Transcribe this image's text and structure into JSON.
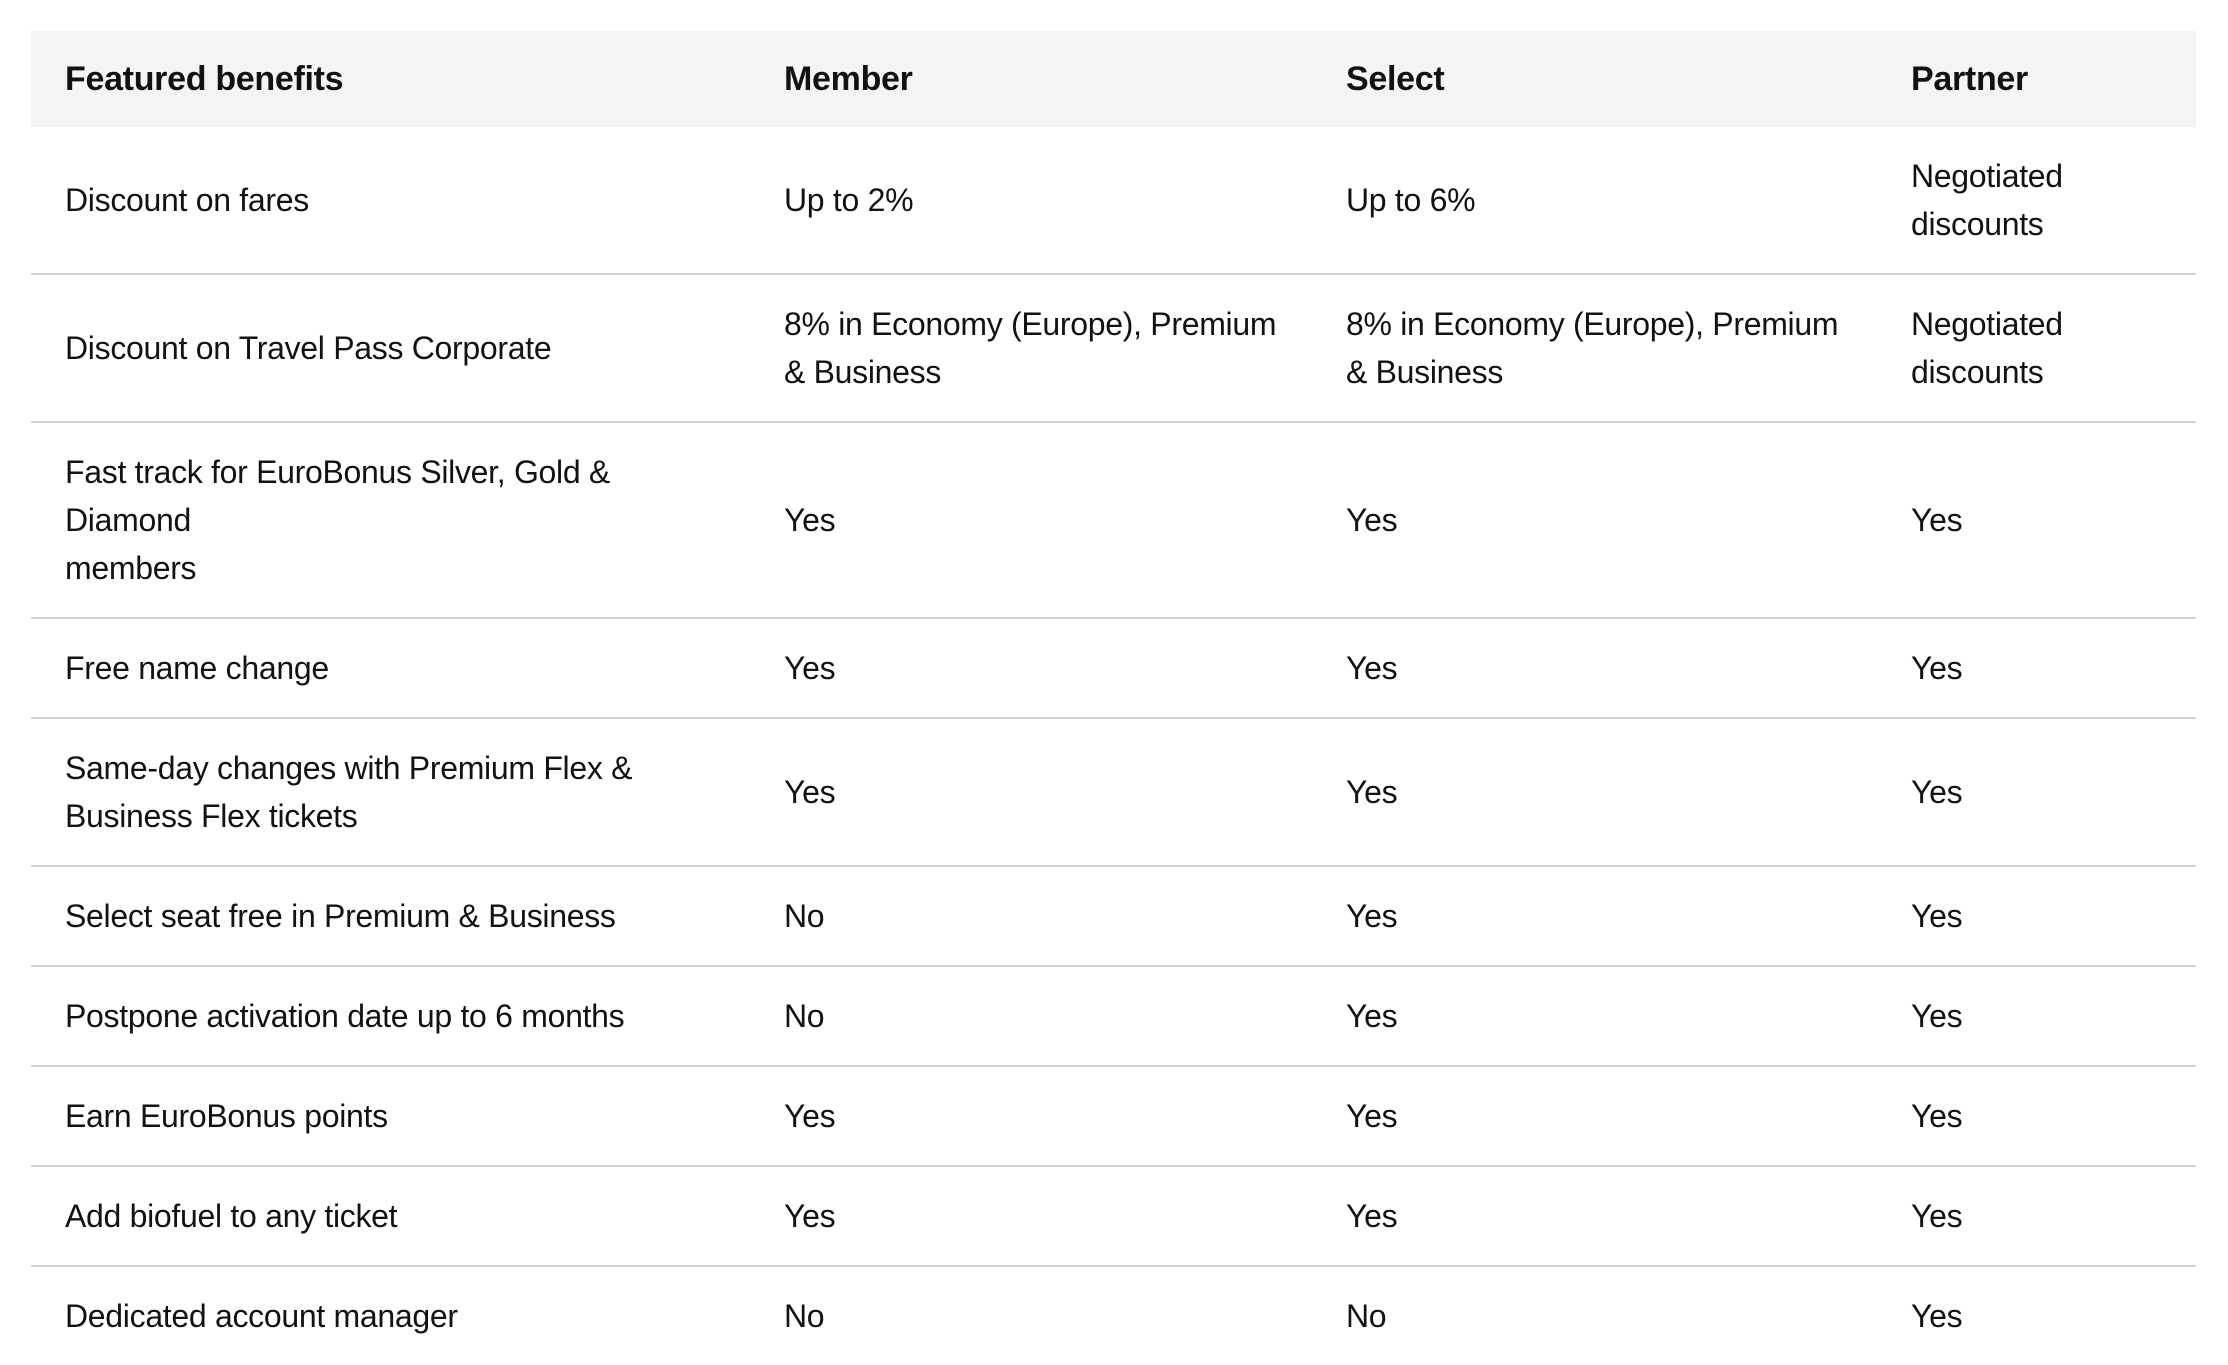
{
  "table": {
    "columns": [
      {
        "key": "benefit",
        "label": "Featured benefits"
      },
      {
        "key": "member",
        "label": "Member"
      },
      {
        "key": "select",
        "label": "Select"
      },
      {
        "key": "partner",
        "label": "Partner"
      }
    ],
    "rows": [
      {
        "benefit": "Discount on fares",
        "member": "Up to 2%",
        "select": "Up to 6%",
        "partner": "Negotiated\ndiscounts"
      },
      {
        "benefit": "Discount on Travel Pass Corporate",
        "member": "8% in Economy (Europe), Premium\n& Business",
        "select": "8% in Economy (Europe), Premium\n& Business",
        "partner": "Negotiated\ndiscounts"
      },
      {
        "benefit": "Fast track for EuroBonus Silver, Gold & Diamond\nmembers",
        "member": "Yes",
        "select": "Yes",
        "partner": "Yes"
      },
      {
        "benefit": "Free name change",
        "member": "Yes",
        "select": "Yes",
        "partner": "Yes"
      },
      {
        "benefit": "Same-day changes with Premium Flex &\nBusiness Flex tickets",
        "member": "Yes",
        "select": "Yes",
        "partner": "Yes"
      },
      {
        "benefit": "Select seat free in Premium & Business",
        "member": "No",
        "select": "Yes",
        "partner": "Yes"
      },
      {
        "benefit": "Postpone activation date up to 6 months",
        "member": "No",
        "select": "Yes",
        "partner": "Yes"
      },
      {
        "benefit": "Earn EuroBonus points",
        "member": "Yes",
        "select": "Yes",
        "partner": "Yes"
      },
      {
        "benefit": "Add biofuel to any ticket",
        "member": "Yes",
        "select": "Yes",
        "partner": "Yes"
      },
      {
        "benefit": "Dedicated account manager",
        "member": "No",
        "select": "No",
        "partner": "Yes"
      }
    ],
    "colors": {
      "header_bg": "#f4f4f4",
      "divider": "#d2d2d2",
      "text": "#121212",
      "page_bg": "#ffffff"
    }
  }
}
